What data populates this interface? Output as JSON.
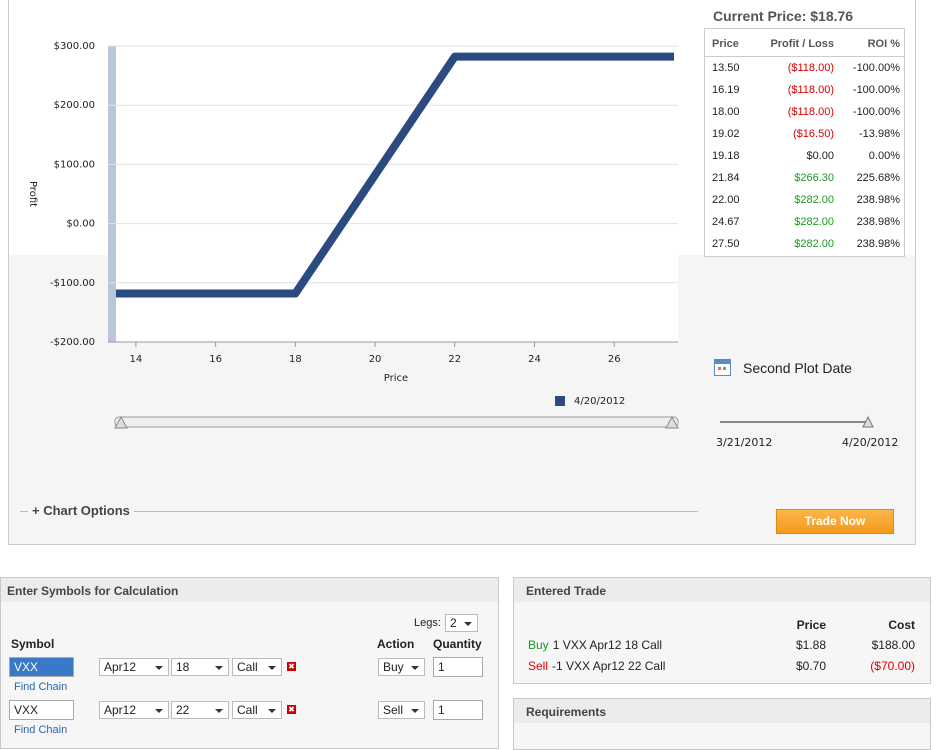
{
  "chart_data": {
    "type": "line",
    "xlabel": "Price",
    "ylabel": "Profit",
    "x": [
      13.5,
      18,
      22,
      27.5
    ],
    "series": [
      {
        "name": "4/20/2012",
        "color": "#2b4b80",
        "values": [
          -118,
          -118,
          282,
          282
        ]
      }
    ],
    "xlim": [
      13.3,
      27.6
    ],
    "ylim": [
      -200,
      300
    ],
    "xticks": [
      14,
      16,
      18,
      20,
      22,
      24,
      26
    ],
    "yticks": [
      {
        "value": -200,
        "label": "-$200.00"
      },
      {
        "value": -100,
        "label": "-$100.00"
      },
      {
        "value": 0,
        "label": "$0.00"
      },
      {
        "value": 100,
        "label": "$100.00"
      },
      {
        "value": 200,
        "label": "$200.00"
      },
      {
        "value": 300,
        "label": "$300.00"
      }
    ],
    "grid": true,
    "legend": "bottom"
  },
  "price_table": {
    "title": "Current Price: $18.76",
    "columns": [
      "Price",
      "Profit / Loss",
      "ROI %"
    ],
    "rows": [
      [
        "13.50",
        "($118.00)",
        "-100.00%"
      ],
      [
        "16.19",
        "($118.00)",
        "-100.00%"
      ],
      [
        "18.00",
        "($118.00)",
        "-100.00%"
      ],
      [
        "19.02",
        "($16.50)",
        "-13.98%"
      ],
      [
        "19.18",
        "$0.00",
        "0.00%"
      ],
      [
        "21.84",
        "$266.30",
        "225.68%"
      ],
      [
        "22.00",
        "$282.00",
        "238.98%"
      ],
      [
        "24.67",
        "$282.00",
        "238.98%"
      ],
      [
        "27.50",
        "$282.00",
        "238.98%"
      ]
    ]
  },
  "second_plot": {
    "label": "Second Plot Date",
    "start": "3/21/2012",
    "end": "4/20/2012"
  },
  "chart_options": "+ Chart Options",
  "trade_now": "Trade Now",
  "symbols_panel": {
    "title": "Enter Symbols for Calculation",
    "legs_label": "Legs:",
    "legs": "2",
    "headers": [
      "Symbol",
      "Action",
      "Quantity"
    ],
    "rows": [
      {
        "symbol": "VXX",
        "expiry": "Apr12",
        "strike": "18",
        "type": "Call",
        "action": "Buy",
        "quantity": "1",
        "link": "Find Chain"
      },
      {
        "symbol": "VXX",
        "expiry": "Apr12",
        "strike": "22",
        "type": "Call",
        "action": "Sell",
        "quantity": "1",
        "link": "Find Chain"
      }
    ]
  },
  "entered_trade": {
    "title": "Entered Trade",
    "headers": [
      "Price",
      "Cost"
    ],
    "rows": [
      {
        "action": "Buy",
        "desc": "1 VXX Apr12 18 Call",
        "price": "$1.88",
        "cost": "$188.00"
      },
      {
        "action": "Sell",
        "desc": "-1 VXX Apr12 22 Call",
        "price": "$0.70",
        "cost": "($70.00)"
      }
    ]
  },
  "requirements": {
    "title": "Requirements"
  }
}
